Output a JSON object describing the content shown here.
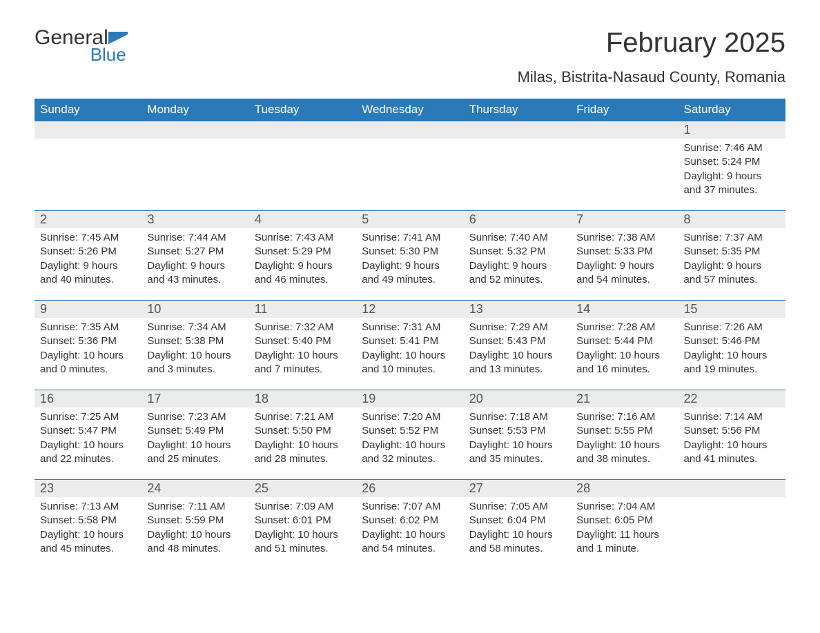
{
  "logo": {
    "word1": "General",
    "word2": "Blue"
  },
  "title": "February 2025",
  "location": "Milas, Bistrita-Nasaud County, Romania",
  "colors": {
    "header_bg": "#2a7ab9",
    "header_text": "#ffffff",
    "daynum_bg": "#ececec",
    "row_border": "#2a7ab9",
    "body_text": "#333333",
    "background": "#ffffff"
  },
  "weekdays": [
    "Sunday",
    "Monday",
    "Tuesday",
    "Wednesday",
    "Thursday",
    "Friday",
    "Saturday"
  ],
  "weeks": [
    [
      null,
      null,
      null,
      null,
      null,
      null,
      {
        "d": "1",
        "sunrise": "Sunrise: 7:46 AM",
        "sunset": "Sunset: 5:24 PM",
        "dl1": "Daylight: 9 hours",
        "dl2": "and 37 minutes."
      }
    ],
    [
      {
        "d": "2",
        "sunrise": "Sunrise: 7:45 AM",
        "sunset": "Sunset: 5:26 PM",
        "dl1": "Daylight: 9 hours",
        "dl2": "and 40 minutes."
      },
      {
        "d": "3",
        "sunrise": "Sunrise: 7:44 AM",
        "sunset": "Sunset: 5:27 PM",
        "dl1": "Daylight: 9 hours",
        "dl2": "and 43 minutes."
      },
      {
        "d": "4",
        "sunrise": "Sunrise: 7:43 AM",
        "sunset": "Sunset: 5:29 PM",
        "dl1": "Daylight: 9 hours",
        "dl2": "and 46 minutes."
      },
      {
        "d": "5",
        "sunrise": "Sunrise: 7:41 AM",
        "sunset": "Sunset: 5:30 PM",
        "dl1": "Daylight: 9 hours",
        "dl2": "and 49 minutes."
      },
      {
        "d": "6",
        "sunrise": "Sunrise: 7:40 AM",
        "sunset": "Sunset: 5:32 PM",
        "dl1": "Daylight: 9 hours",
        "dl2": "and 52 minutes."
      },
      {
        "d": "7",
        "sunrise": "Sunrise: 7:38 AM",
        "sunset": "Sunset: 5:33 PM",
        "dl1": "Daylight: 9 hours",
        "dl2": "and 54 minutes."
      },
      {
        "d": "8",
        "sunrise": "Sunrise: 7:37 AM",
        "sunset": "Sunset: 5:35 PM",
        "dl1": "Daylight: 9 hours",
        "dl2": "and 57 minutes."
      }
    ],
    [
      {
        "d": "9",
        "sunrise": "Sunrise: 7:35 AM",
        "sunset": "Sunset: 5:36 PM",
        "dl1": "Daylight: 10 hours",
        "dl2": "and 0 minutes."
      },
      {
        "d": "10",
        "sunrise": "Sunrise: 7:34 AM",
        "sunset": "Sunset: 5:38 PM",
        "dl1": "Daylight: 10 hours",
        "dl2": "and 3 minutes."
      },
      {
        "d": "11",
        "sunrise": "Sunrise: 7:32 AM",
        "sunset": "Sunset: 5:40 PM",
        "dl1": "Daylight: 10 hours",
        "dl2": "and 7 minutes."
      },
      {
        "d": "12",
        "sunrise": "Sunrise: 7:31 AM",
        "sunset": "Sunset: 5:41 PM",
        "dl1": "Daylight: 10 hours",
        "dl2": "and 10 minutes."
      },
      {
        "d": "13",
        "sunrise": "Sunrise: 7:29 AM",
        "sunset": "Sunset: 5:43 PM",
        "dl1": "Daylight: 10 hours",
        "dl2": "and 13 minutes."
      },
      {
        "d": "14",
        "sunrise": "Sunrise: 7:28 AM",
        "sunset": "Sunset: 5:44 PM",
        "dl1": "Daylight: 10 hours",
        "dl2": "and 16 minutes."
      },
      {
        "d": "15",
        "sunrise": "Sunrise: 7:26 AM",
        "sunset": "Sunset: 5:46 PM",
        "dl1": "Daylight: 10 hours",
        "dl2": "and 19 minutes."
      }
    ],
    [
      {
        "d": "16",
        "sunrise": "Sunrise: 7:25 AM",
        "sunset": "Sunset: 5:47 PM",
        "dl1": "Daylight: 10 hours",
        "dl2": "and 22 minutes."
      },
      {
        "d": "17",
        "sunrise": "Sunrise: 7:23 AM",
        "sunset": "Sunset: 5:49 PM",
        "dl1": "Daylight: 10 hours",
        "dl2": "and 25 minutes."
      },
      {
        "d": "18",
        "sunrise": "Sunrise: 7:21 AM",
        "sunset": "Sunset: 5:50 PM",
        "dl1": "Daylight: 10 hours",
        "dl2": "and 28 minutes."
      },
      {
        "d": "19",
        "sunrise": "Sunrise: 7:20 AM",
        "sunset": "Sunset: 5:52 PM",
        "dl1": "Daylight: 10 hours",
        "dl2": "and 32 minutes."
      },
      {
        "d": "20",
        "sunrise": "Sunrise: 7:18 AM",
        "sunset": "Sunset: 5:53 PM",
        "dl1": "Daylight: 10 hours",
        "dl2": "and 35 minutes."
      },
      {
        "d": "21",
        "sunrise": "Sunrise: 7:16 AM",
        "sunset": "Sunset: 5:55 PM",
        "dl1": "Daylight: 10 hours",
        "dl2": "and 38 minutes."
      },
      {
        "d": "22",
        "sunrise": "Sunrise: 7:14 AM",
        "sunset": "Sunset: 5:56 PM",
        "dl1": "Daylight: 10 hours",
        "dl2": "and 41 minutes."
      }
    ],
    [
      {
        "d": "23",
        "sunrise": "Sunrise: 7:13 AM",
        "sunset": "Sunset: 5:58 PM",
        "dl1": "Daylight: 10 hours",
        "dl2": "and 45 minutes."
      },
      {
        "d": "24",
        "sunrise": "Sunrise: 7:11 AM",
        "sunset": "Sunset: 5:59 PM",
        "dl1": "Daylight: 10 hours",
        "dl2": "and 48 minutes."
      },
      {
        "d": "25",
        "sunrise": "Sunrise: 7:09 AM",
        "sunset": "Sunset: 6:01 PM",
        "dl1": "Daylight: 10 hours",
        "dl2": "and 51 minutes."
      },
      {
        "d": "26",
        "sunrise": "Sunrise: 7:07 AM",
        "sunset": "Sunset: 6:02 PM",
        "dl1": "Daylight: 10 hours",
        "dl2": "and 54 minutes."
      },
      {
        "d": "27",
        "sunrise": "Sunrise: 7:05 AM",
        "sunset": "Sunset: 6:04 PM",
        "dl1": "Daylight: 10 hours",
        "dl2": "and 58 minutes."
      },
      {
        "d": "28",
        "sunrise": "Sunrise: 7:04 AM",
        "sunset": "Sunset: 6:05 PM",
        "dl1": "Daylight: 11 hours",
        "dl2": "and 1 minute."
      },
      null
    ]
  ]
}
